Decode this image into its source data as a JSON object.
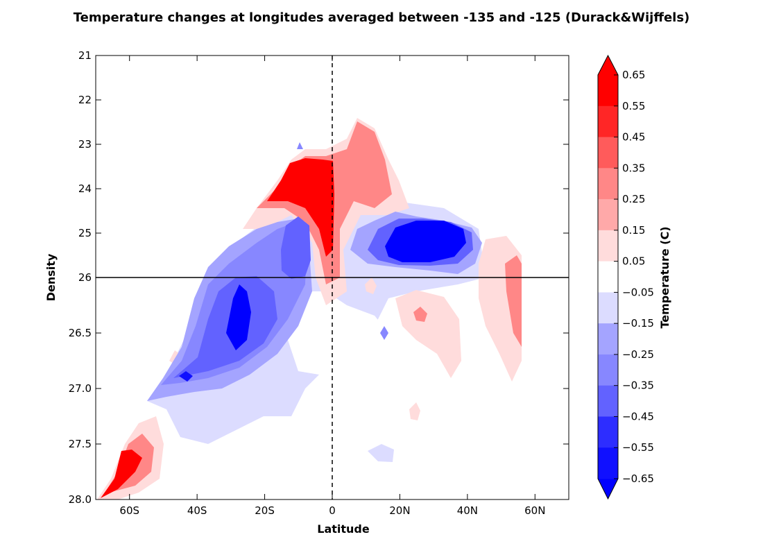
{
  "chart_data": {
    "type": "heatmap",
    "subtype": "filled-contour",
    "title": "Temperature changes at longitudes averaged between -135 and -125 (Durack&Wijffels)",
    "xlabel": "Latitude",
    "ylabel": "Density",
    "xlim": [
      -70,
      70
    ],
    "x_ticks": [
      {
        "value": -60,
        "label": "60S"
      },
      {
        "value": -40,
        "label": "40S"
      },
      {
        "value": -20,
        "label": "20S"
      },
      {
        "value": 0,
        "label": "0"
      },
      {
        "value": 20,
        "label": "20N"
      },
      {
        "value": 40,
        "label": "40N"
      },
      {
        "value": 60,
        "label": "60N"
      }
    ],
    "y_upper_range": [
      21,
      26
    ],
    "y_lower_range": [
      26,
      28
    ],
    "y_ticks_upper": [
      "21",
      "22",
      "23",
      "24",
      "25",
      "26"
    ],
    "y_ticks_lower": [
      "26.5",
      "27.0",
      "27.5",
      "28.0"
    ],
    "y_tick_values_upper": [
      21,
      22,
      23,
      24,
      25,
      26
    ],
    "y_tick_values_lower": [
      26.5,
      27.0,
      27.5,
      28.0
    ],
    "reference_lines": {
      "vertical_dashed_at_latitude": 0,
      "horizontal_solid_at_density": 26
    },
    "colorbar": {
      "label": "Temperature (C)",
      "tick_labels": [
        "0.65",
        "0.55",
        "0.45",
        "0.35",
        "0.25",
        "0.15",
        "0.05",
        "−0.05",
        "−0.15",
        "−0.25",
        "−0.35",
        "−0.45",
        "−0.55",
        "−0.65"
      ],
      "levels": [
        0.65,
        0.55,
        0.45,
        0.35,
        0.25,
        0.15,
        0.05,
        -0.05,
        -0.15,
        -0.25,
        -0.35,
        -0.45,
        -0.55,
        -0.65
      ],
      "band_colors": [
        "#ff0000",
        "#ff2626",
        "#ff5b5b",
        "#ff8787",
        "#ffa9a9",
        "#ffdcdc",
        "#ffffff",
        "#dcdcff",
        "#a4a4ff",
        "#8787ff",
        "#6262ff",
        "#2d2dff",
        "#1010ff"
      ],
      "extend_max_color": "#ff0000",
      "extend_min_color": "#0000ff"
    },
    "anomaly_regions": [
      {
        "lat_min": -66,
        "lat_max": -54,
        "dens_min": 27.2,
        "dens_max": 28.0,
        "value": 0.5
      },
      {
        "lat_min": -22,
        "lat_max": 0,
        "dens_min": 23.3,
        "dens_max": 25.0,
        "value": 0.6
      },
      {
        "lat_min": -10,
        "lat_max": 0,
        "dens_min": 25.0,
        "dens_max": 26.4,
        "value": 0.3
      },
      {
        "lat_min": 0,
        "lat_max": 20,
        "dens_min": 22.4,
        "dens_max": 25.0,
        "value": 0.3
      },
      {
        "lat_min": 48,
        "lat_max": 56,
        "dens_min": 25.4,
        "dens_max": 27.0,
        "value": 0.3
      },
      {
        "lat_min": 18,
        "lat_max": 38,
        "dens_min": 26.1,
        "dens_max": 26.9,
        "value": 0.15
      },
      {
        "lat_min": -16,
        "lat_max": -8,
        "dens_min": 24.8,
        "dens_max": 25.9,
        "value": -0.5
      },
      {
        "lat_min": -36,
        "lat_max": -18,
        "dens_min": 25.9,
        "dens_max": 26.8,
        "value": -0.5
      },
      {
        "lat_min": 14,
        "lat_max": 42,
        "dens_min": 24.7,
        "dens_max": 25.8,
        "value": -0.55
      },
      {
        "lat_min": -50,
        "lat_max": -10,
        "dens_min": 26.5,
        "dens_max": 27.6,
        "value": -0.1
      }
    ]
  }
}
